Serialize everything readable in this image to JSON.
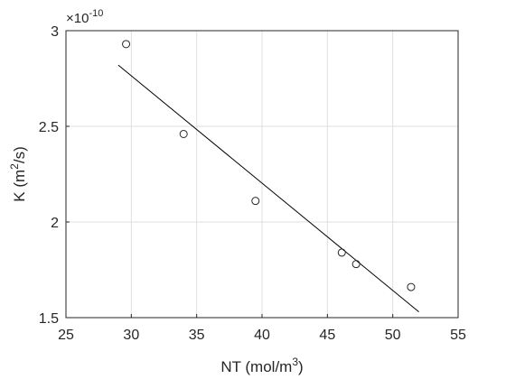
{
  "chart_data": {
    "type": "scatter",
    "title": "",
    "xlabel": "NT (mol/m3)",
    "xlabel_parts": {
      "prefix": "NT (mol/m",
      "sup": "3",
      "suffix": ")"
    },
    "ylabel": "K (m2/s)",
    "ylabel_parts": {
      "prefix": "K (m",
      "sup": "2",
      "suffix": "/s)"
    },
    "y_exponent": {
      "base": "×10",
      "power": "-10"
    },
    "xlim": [
      25,
      55
    ],
    "ylim": [
      1.5,
      3
    ],
    "x_ticks": [
      25,
      30,
      35,
      40,
      45,
      50,
      55
    ],
    "x_tick_labels": [
      "25",
      "30",
      "35",
      "40",
      "45",
      "50",
      "55"
    ],
    "y_ticks": [
      1.5,
      2,
      2.5,
      3
    ],
    "y_tick_labels": [
      "1.5",
      "2",
      "2.5",
      "3"
    ],
    "grid": true,
    "series": [
      {
        "kind": "markers",
        "marker": "open-circle",
        "x": [
          29.6,
          34.0,
          39.5,
          46.1,
          47.2,
          51.4
        ],
        "y": [
          2.93,
          2.46,
          2.11,
          1.84,
          1.78,
          1.66
        ]
      },
      {
        "kind": "fit-line",
        "x": [
          29.0,
          52.0
        ],
        "y": [
          2.82,
          1.53
        ]
      }
    ],
    "colors": {
      "marker": "#262626",
      "line": "#000000",
      "grid": "#dfdfdf",
      "axis": "#262626"
    }
  }
}
